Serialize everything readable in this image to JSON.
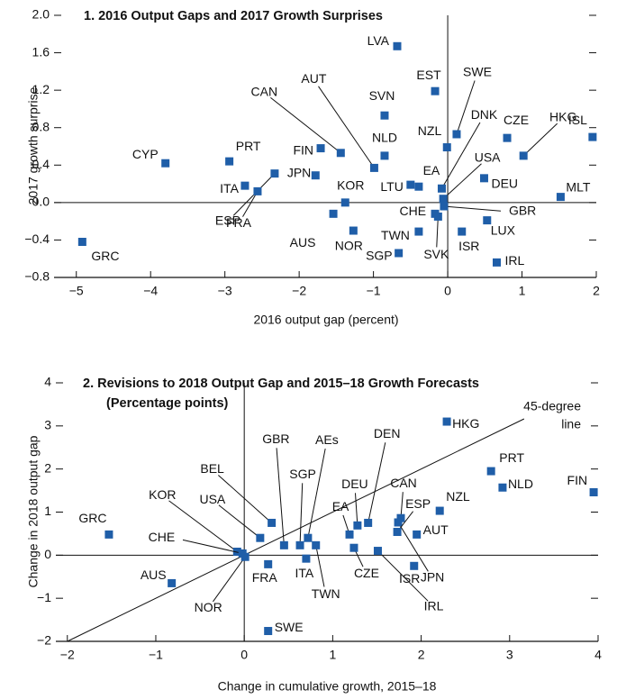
{
  "chart_data": [
    {
      "type": "scatter",
      "title": "1. 2016 Output Gaps and 2017 Growth Surprises",
      "x_label": "2016 output gap (percent)",
      "y_label": "2017 growth surprise",
      "color": "#1f5ea8",
      "xlim": [
        -5.3,
        2
      ],
      "ylim": [
        -0.8,
        2.0
      ],
      "xticks": [
        {
          "value": -5,
          "label": "−5"
        },
        {
          "value": -4,
          "label": "−4"
        },
        {
          "value": -3,
          "label": "−3"
        },
        {
          "value": -2,
          "label": "−2"
        },
        {
          "value": -1,
          "label": "−1"
        },
        0,
        1,
        2
      ],
      "yticks": [
        {
          "value": -0.8,
          "label": "−0.8"
        },
        {
          "value": -0.4,
          "label": "−0.4"
        },
        {
          "value": 0,
          "label": "0.0"
        },
        {
          "value": 0.4,
          "label": "0.4"
        },
        {
          "value": 0.8,
          "label": "0.8"
        },
        {
          "value": 1.2,
          "label": "1.2"
        },
        {
          "value": 1.6,
          "label": "1.6"
        },
        {
          "value": 2,
          "label": "2.0"
        }
      ],
      "labels": [
        "GRC",
        "CYP",
        "PRT",
        "ITA",
        "ESP",
        "JPN",
        "FRA",
        "FIN",
        "CAN",
        "KOR",
        "AUS",
        "NOR",
        "SGP",
        "LVA",
        "AUT",
        "SVN",
        "NLD",
        "EST",
        "TWN",
        "LTU",
        "EA",
        "NZL",
        "SWE",
        "DNK",
        "USA",
        "GBR",
        "CHE",
        "SVK",
        "ISR",
        "LUX",
        "IRL",
        "DEU",
        "CZE",
        "HKG",
        "ISL",
        "MLT"
      ],
      "x": [
        -4.92,
        -3.8,
        -2.94,
        -2.73,
        -2.33,
        -1.78,
        -2.56,
        -1.71,
        -1.44,
        -1.38,
        -1.54,
        -1.27,
        -0.66,
        -0.68,
        -0.99,
        -0.85,
        -0.85,
        -0.17,
        -0.39,
        -0.5,
        -0.39,
        -0.01,
        0.12,
        -0.08,
        -0.06,
        -0.05,
        -0.17,
        -0.13,
        0.19,
        0.53,
        0.66,
        0.49,
        0.8,
        1.02,
        1.95,
        1.52
      ],
      "values": [
        -0.42,
        0.42,
        0.44,
        0.18,
        0.31,
        0.29,
        0.12,
        0.58,
        0.53,
        0.0,
        -0.12,
        -0.3,
        -0.54,
        1.67,
        0.37,
        0.93,
        0.5,
        1.19,
        -0.31,
        0.19,
        0.17,
        0.59,
        0.73,
        0.15,
        0.04,
        -0.04,
        -0.12,
        -0.15,
        -0.31,
        -0.19,
        -0.64,
        0.26,
        0.69,
        0.5,
        0.7,
        0.06
      ]
    },
    {
      "type": "scatter",
      "title": "2. Revisions to 2018 Output Gap and 2015–18 Growth Forecasts",
      "subtitle": "(Percentage points)",
      "x_label": "Change in cumulative growth, 2015–18",
      "y_label": "Change in 2018 output gap",
      "annotation": [
        "45-degree",
        "line"
      ],
      "color": "#1f5ea8",
      "xlim": [
        -2.13,
        4
      ],
      "ylim": [
        -2,
        4
      ],
      "xticks": [
        {
          "value": -2,
          "label": "−2"
        },
        {
          "value": -1,
          "label": "−1"
        },
        0,
        1,
        2,
        3,
        4
      ],
      "yticks": [
        {
          "value": -2,
          "label": "−2"
        },
        {
          "value": -1,
          "label": "−1"
        },
        0,
        1,
        2,
        3,
        4
      ],
      "labels": [
        "GRC",
        "AUS",
        "KOR",
        "CHE",
        "NOR",
        "USA",
        "BEL",
        "FRA",
        "GBR",
        "SGP",
        "AEs",
        "ITA",
        "TWN",
        "EA",
        "DEU",
        "DEN",
        "CAN",
        "JPN",
        "ESP",
        "CZE",
        "IRL",
        "AUT",
        "ISR",
        "NZL",
        "HKG",
        "PRT",
        "NLD",
        "FIN",
        "SWE"
      ],
      "x": [
        -1.53,
        -0.82,
        -0.08,
        -0.02,
        0.01,
        0.18,
        0.31,
        0.27,
        0.45,
        0.63,
        0.72,
        0.7,
        0.81,
        1.19,
        1.28,
        1.4,
        1.77,
        1.74,
        1.73,
        1.24,
        1.51,
        1.95,
        1.92,
        2.21,
        2.29,
        2.79,
        2.92,
        3.95,
        0.27
      ],
      "values": [
        0.48,
        -0.65,
        0.08,
        0.04,
        -0.04,
        0.4,
        0.75,
        -0.21,
        0.23,
        0.23,
        0.4,
        -0.08,
        0.23,
        0.48,
        0.69,
        0.75,
        0.86,
        0.76,
        0.54,
        0.17,
        0.1,
        0.48,
        -0.25,
        1.03,
        3.1,
        1.95,
        1.57,
        1.46,
        -1.76
      ]
    }
  ]
}
